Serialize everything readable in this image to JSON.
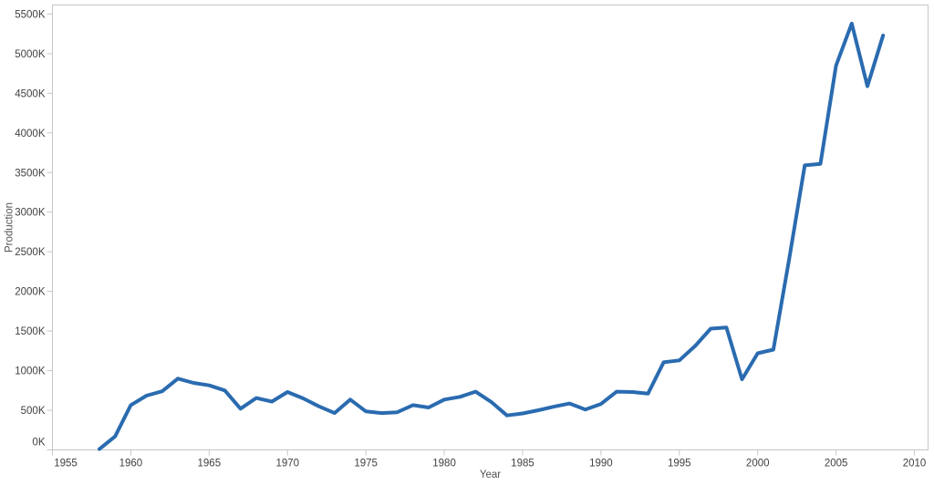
{
  "chart": {
    "title": "",
    "line_color": "#2a6bb0",
    "axis_color": "#c6c6c6",
    "tick_color": "#c6c6c6",
    "tick_label_color": "#414141",
    "axis_title_color": "#535353",
    "background_color": "#ffffff"
  },
  "chart_data": {
    "type": "line",
    "title": "",
    "xlabel": "Year",
    "ylabel": "Production",
    "x": [
      1958,
      1959,
      1960,
      1961,
      1962,
      1963,
      1964,
      1965,
      1966,
      1967,
      1968,
      1969,
      1970,
      1971,
      1972,
      1973,
      1974,
      1975,
      1976,
      1977,
      1978,
      1979,
      1980,
      1981,
      1982,
      1983,
      1984,
      1985,
      1986,
      1987,
      1988,
      1989,
      1990,
      1991,
      1992,
      1993,
      1994,
      1995,
      1996,
      1997,
      1998,
      1999,
      2000,
      2001,
      2002,
      2003,
      2004,
      2005,
      2006,
      2007,
      2008
    ],
    "values": [
      10,
      170,
      565,
      685,
      740,
      900,
      845,
      815,
      750,
      520,
      655,
      610,
      730,
      650,
      550,
      465,
      635,
      485,
      465,
      475,
      565,
      535,
      635,
      670,
      735,
      605,
      435,
      460,
      500,
      545,
      585,
      510,
      580,
      735,
      730,
      710,
      1105,
      1130,
      1310,
      1530,
      1545,
      890,
      1220,
      1265,
      2400,
      3590,
      3610,
      4850,
      5380,
      4590,
      5230
    ],
    "series_name": "Production",
    "x_ticks": [
      1955,
      1960,
      1965,
      1970,
      1975,
      1980,
      1985,
      1990,
      1995,
      2000,
      2005,
      2010
    ],
    "y_ticks": [
      0,
      500,
      1000,
      1500,
      2000,
      2500,
      3000,
      3500,
      4000,
      4500,
      5000,
      5500
    ],
    "y_tick_suffix": "K",
    "xlim": [
      1955,
      2010.87
    ],
    "ylim": [
      0,
      5614
    ],
    "grid": false,
    "legend": "none"
  }
}
